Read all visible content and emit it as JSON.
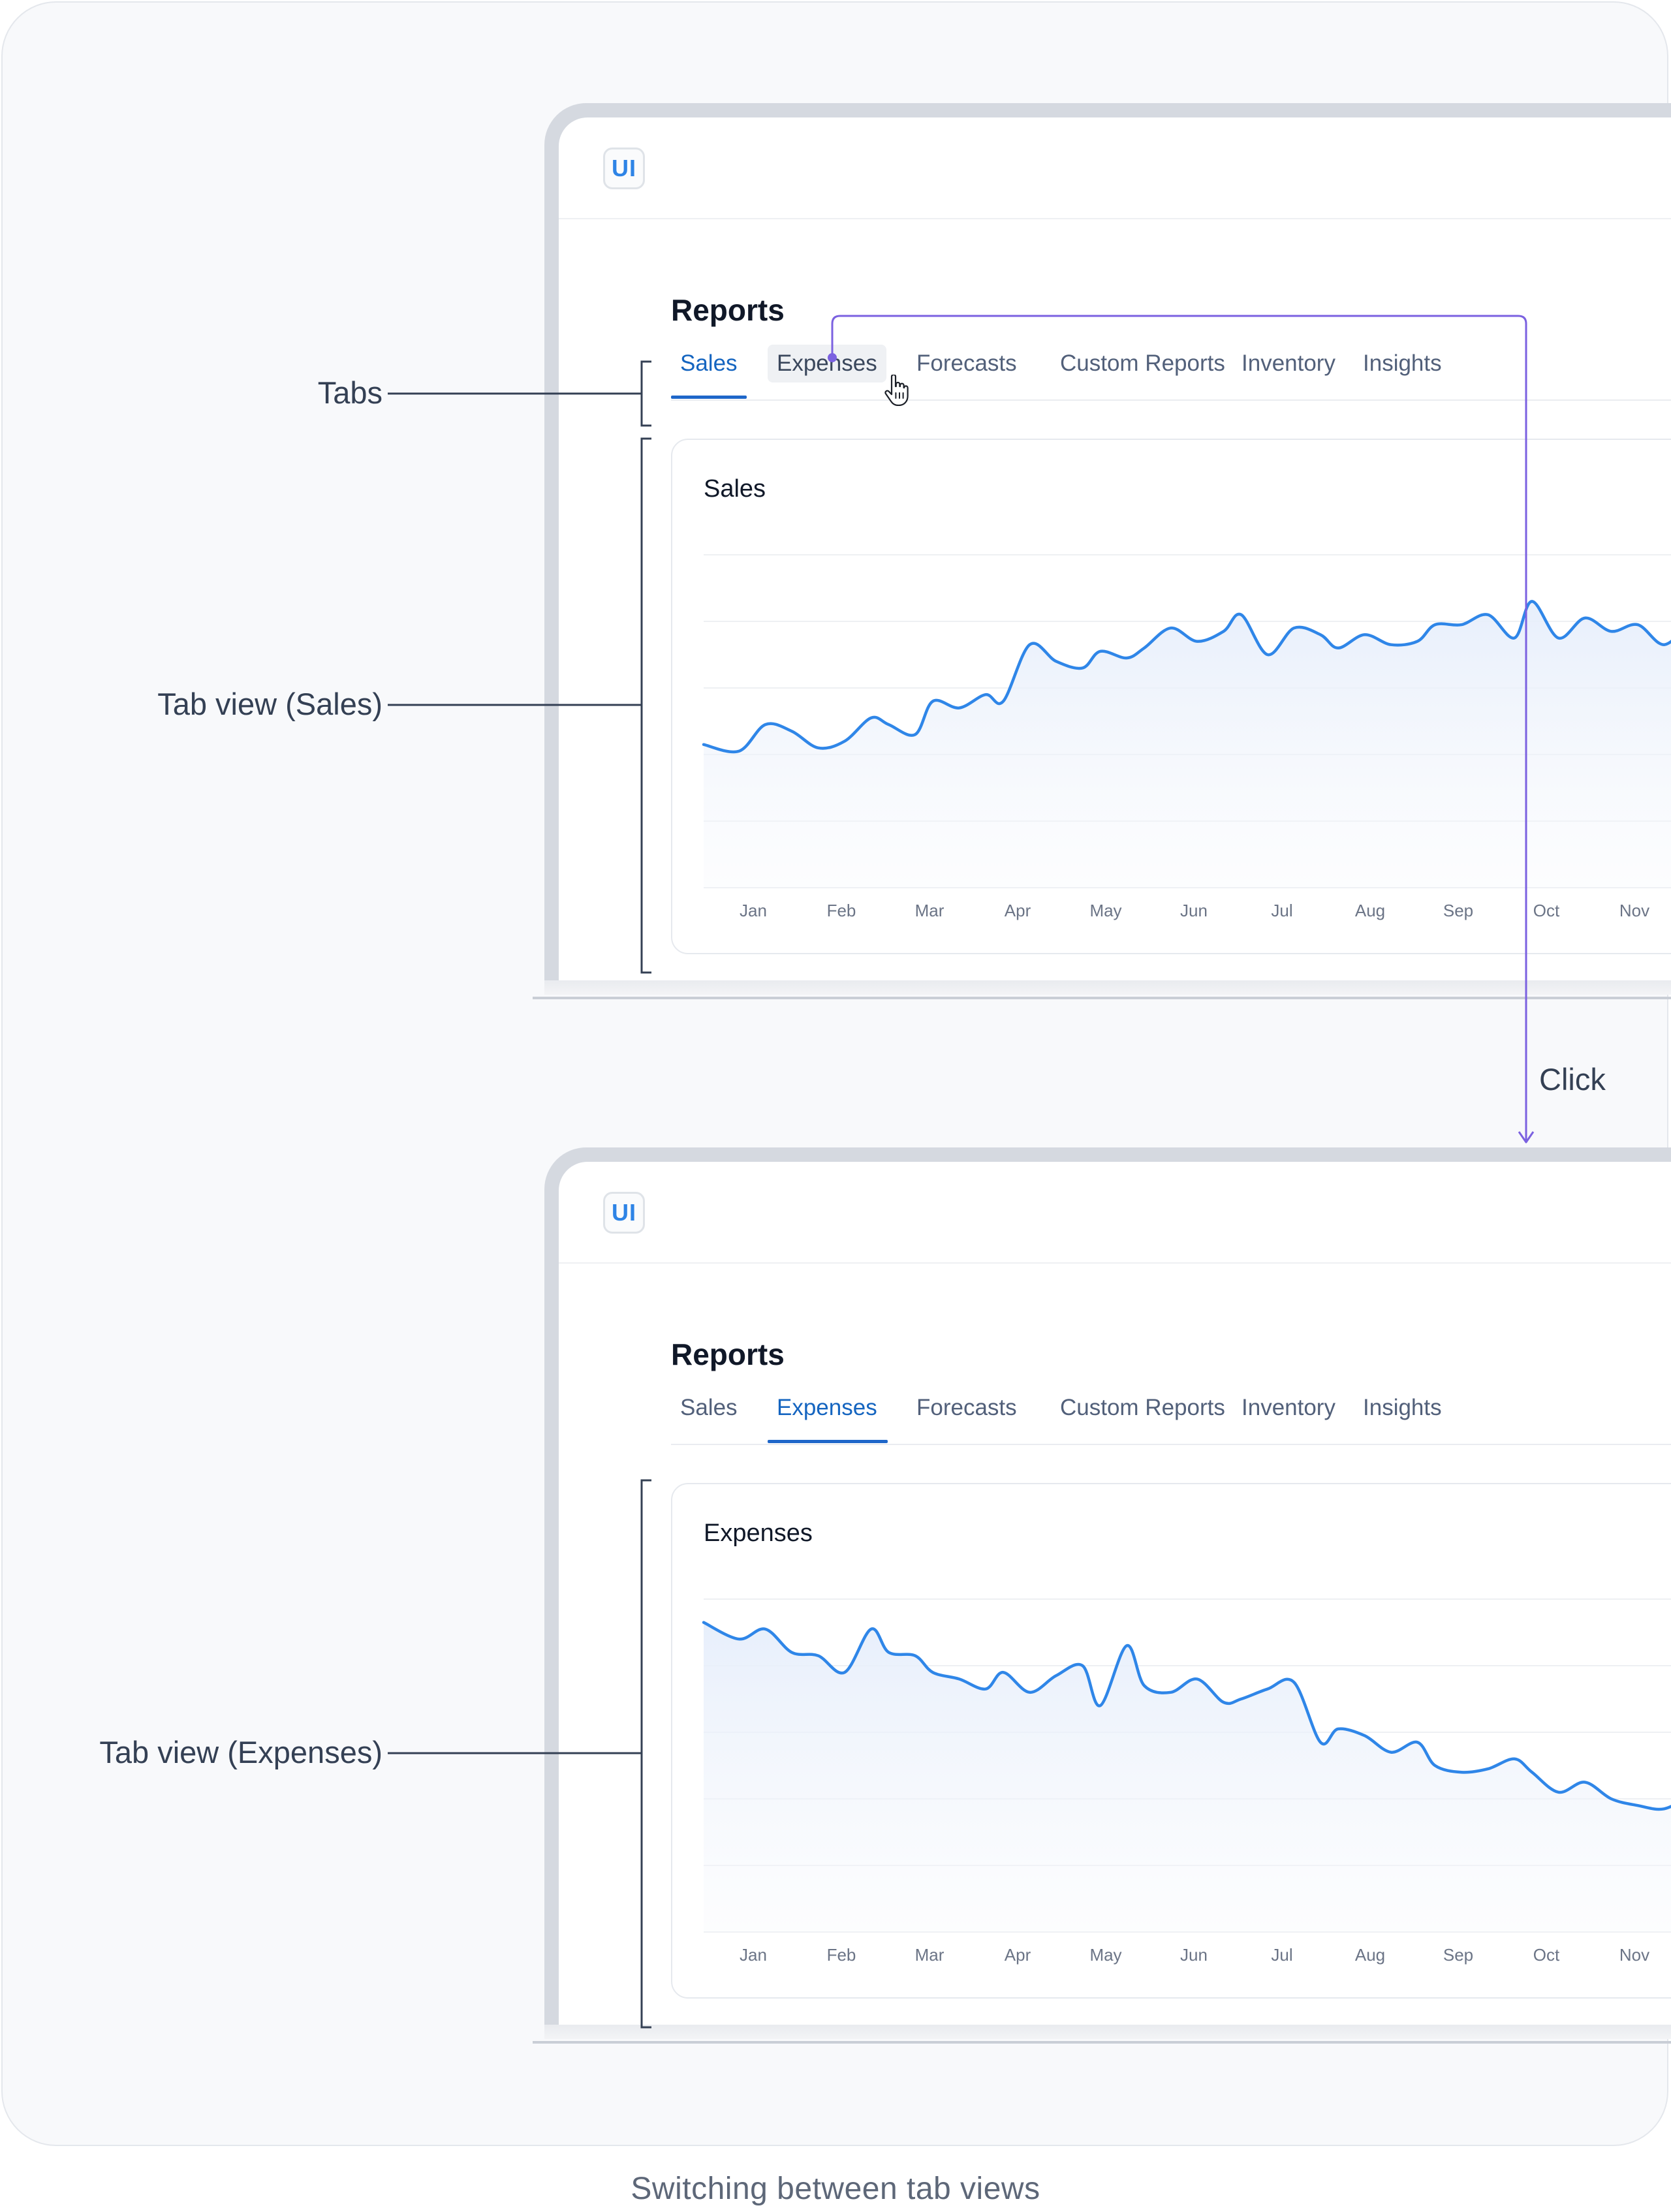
{
  "caption": "Switching between tab views",
  "logo": "UI",
  "annotations": {
    "tabs": "Tabs",
    "sales_view": "Tab view (Sales)",
    "expenses_view": "Tab view (Expenses)",
    "click": "Click"
  },
  "colors": {
    "accent": "#1e66c9",
    "line": "#2f86e8",
    "annotation_arrow": "#7b61e0",
    "bracket": "#344054"
  },
  "icons": [
    "hand-pointer-cursor-icon"
  ],
  "screens": [
    {
      "page_title": "Reports",
      "tabs": [
        "Sales",
        "Expenses",
        "Forecasts",
        "Custom Reports",
        "Inventory",
        "Insights"
      ],
      "active_tab": "Sales",
      "hovered_tab": "Expenses",
      "card_title": "Sales"
    },
    {
      "page_title": "Reports",
      "tabs": [
        "Sales",
        "Expenses",
        "Forecasts",
        "Custom Reports",
        "Inventory",
        "Insights"
      ],
      "active_tab": "Expenses",
      "card_title": "Expenses"
    }
  ],
  "chart_data": [
    {
      "type": "area",
      "title": "Sales",
      "categories": [
        "Jan",
        "Feb",
        "Mar",
        "Apr",
        "May",
        "Jun",
        "Jul",
        "Aug",
        "Sep",
        "Oct",
        "Nov"
      ],
      "y_grid": true,
      "ylim": [
        0,
        100
      ],
      "x": [
        0,
        0.4,
        0.7,
        1.0,
        1.3,
        1.6,
        1.9,
        2.1,
        2.4,
        2.6,
        2.9,
        3.2,
        3.4,
        3.7,
        4.0,
        4.3,
        4.5,
        4.8,
        5.0,
        5.3,
        5.6,
        5.9,
        6.1,
        6.4,
        6.7,
        7.0,
        7.2,
        7.5,
        7.8,
        8.1,
        8.3,
        8.6,
        8.9,
        9.2,
        9.4,
        9.7,
        10.0,
        10.3,
        10.6,
        10.9,
        11.2
      ],
      "values": [
        43,
        41,
        49,
        47,
        42,
        44,
        51,
        49,
        46,
        56,
        54,
        58,
        56,
        73,
        68,
        66,
        71,
        69,
        72,
        78,
        74,
        77,
        82,
        70,
        78,
        76,
        72,
        76,
        73,
        74,
        79,
        79,
        82,
        75,
        86,
        75,
        81,
        77,
        79,
        73,
        80
      ],
      "note": "x is fractional month position starting at Jan"
    },
    {
      "type": "area",
      "title": "Expenses",
      "categories": [
        "Jan",
        "Feb",
        "Mar",
        "Apr",
        "May",
        "Jun",
        "Jul",
        "Aug",
        "Sep",
        "Oct",
        "Nov"
      ],
      "y_grid": true,
      "ylim": [
        0,
        100
      ],
      "x": [
        0,
        0.4,
        0.7,
        1.0,
        1.3,
        1.6,
        1.9,
        2.1,
        2.4,
        2.6,
        2.9,
        3.2,
        3.4,
        3.7,
        4.0,
        4.3,
        4.5,
        4.8,
        5.0,
        5.3,
        5.6,
        5.9,
        6.1,
        6.4,
        6.7,
        7.0,
        7.2,
        7.5,
        7.8,
        8.1,
        8.3,
        8.6,
        8.9,
        9.2,
        9.4,
        9.7,
        10.0,
        10.3,
        10.6,
        10.9,
        11.2
      ],
      "values": [
        93,
        88,
        91,
        84,
        83,
        78,
        91,
        84,
        83,
        78,
        76,
        73,
        78,
        72,
        77,
        80,
        68,
        86,
        74,
        72,
        76,
        69,
        70,
        73,
        75,
        57,
        61,
        59,
        54,
        57,
        50,
        48,
        49,
        52,
        48,
        42,
        45,
        40,
        38,
        37,
        41
      ],
      "note": "x is fractional month position starting at Jan"
    }
  ]
}
